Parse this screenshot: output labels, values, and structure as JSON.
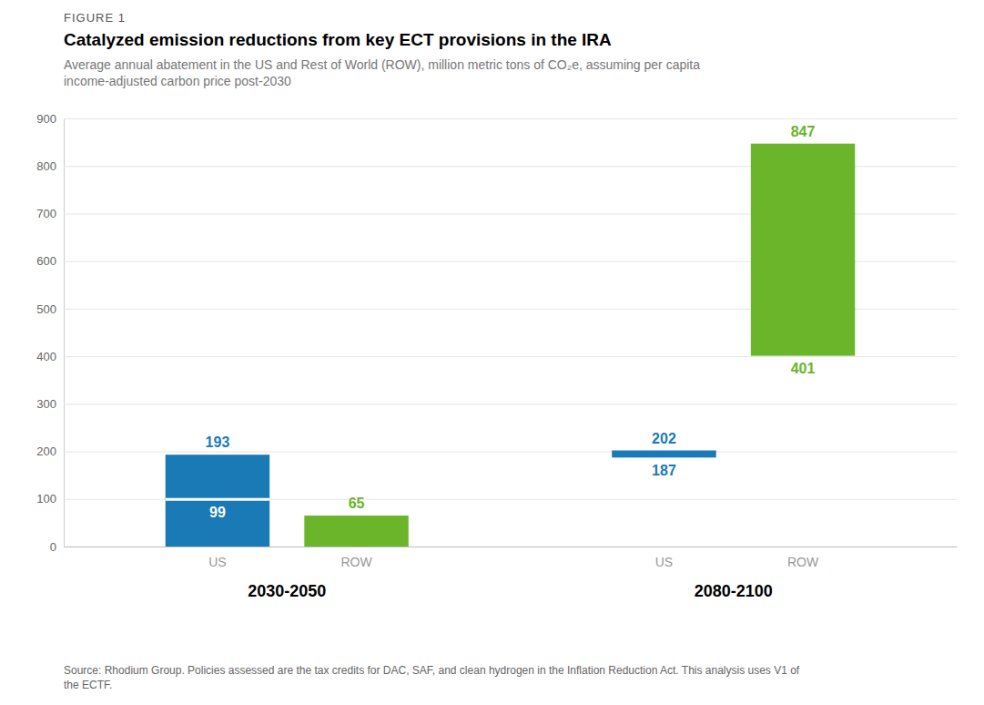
{
  "chart_data": {
    "type": "bar",
    "figure_label": "FIGURE 1",
    "title": "Catalyzed emission reductions from key ECT provisions in the IRA",
    "subtitle": "Average annual abatement in the US and Rest of World (ROW), million metric tons of CO₂e, assuming per capita\nincome-adjusted carbon price post-2030",
    "source": "Source: Rhodium Group. Policies assessed are the tax credits for DAC, SAF, and clean hydrogen in the Inflation Reduction Act. This analysis uses V1 of\nthe ECTF.",
    "categories": [
      "2030-2050",
      "2080-2100"
    ],
    "series": [
      {
        "name": "US",
        "color": "#1a7ab5",
        "values": [
          193,
          202
        ],
        "bottoms": [
          0,
          187
        ],
        "lines": [
          99,
          null
        ]
      },
      {
        "name": "ROW",
        "color": "#6ab52a",
        "values": [
          65,
          847
        ],
        "bottoms": [
          0,
          401
        ],
        "lines": [
          null,
          null
        ]
      }
    ],
    "ylim": [
      0,
      900
    ],
    "yticks": [
      0,
      100,
      200,
      300,
      400,
      500,
      600,
      700,
      800,
      900
    ],
    "grid": true,
    "data_labels": true
  }
}
